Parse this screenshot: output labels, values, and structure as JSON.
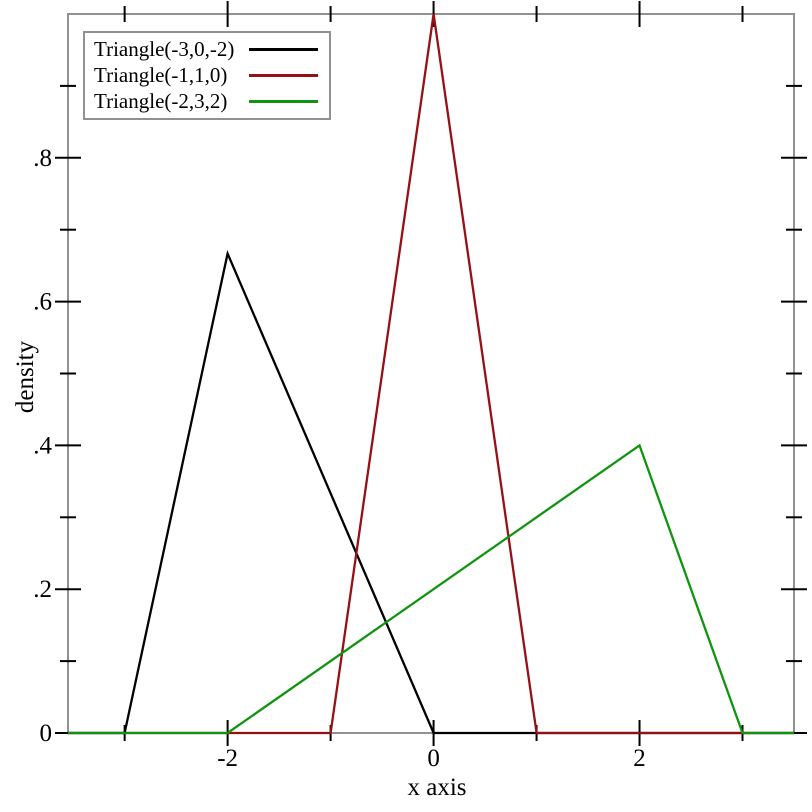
{
  "chart_data": {
    "type": "line",
    "title": "",
    "xlabel": "x axis",
    "ylabel": "density",
    "x_range": [
      -3.55,
      3.5
    ],
    "y_range": [
      0,
      1
    ],
    "grid": "off",
    "frame_color": "#919191",
    "tick_color": "#000000",
    "x_ticks_major": [
      {
        "value": -2,
        "label": "-2"
      },
      {
        "value": 0,
        "label": "0"
      },
      {
        "value": 2,
        "label": "2"
      }
    ],
    "x_ticks_minor": [
      -3,
      -1,
      1,
      3
    ],
    "y_ticks_major": [
      {
        "value": 0,
        "label": "0"
      },
      {
        "value": 0.2,
        "label": ".2"
      },
      {
        "value": 0.4,
        "label": ".4"
      },
      {
        "value": 0.6,
        "label": ".6"
      },
      {
        "value": 0.8,
        "label": ".8"
      }
    ],
    "y_ticks_minor": [
      0.1,
      0.3,
      0.5,
      0.7,
      0.9
    ],
    "series": [
      {
        "name": "Triangle(-3,0,-2)",
        "color": "#000000",
        "description": "triangular pdf, min -3, max 0, mode -2, peak density 0.667",
        "points": [
          [
            -3.55,
            0
          ],
          [
            -3,
            0
          ],
          [
            -2,
            0.6667
          ],
          [
            0,
            0
          ],
          [
            3.5,
            0
          ]
        ]
      },
      {
        "name": "Triangle(-1,1,0)",
        "color": "#941116",
        "description": "triangular pdf, min -1, max 1, mode 0, peak density 1.0",
        "points": [
          [
            -3.55,
            0
          ],
          [
            -1,
            0
          ],
          [
            0,
            1
          ],
          [
            1,
            0
          ],
          [
            3.5,
            0
          ]
        ]
      },
      {
        "name": "Triangle(-2,3,2)",
        "color": "#109410",
        "description": "triangular pdf, min -2, max 3, mode 2, peak density 0.4",
        "points": [
          [
            -3.55,
            0
          ],
          [
            -2,
            0
          ],
          [
            2,
            0.4
          ],
          [
            3,
            0
          ],
          [
            3.5,
            0
          ]
        ]
      }
    ],
    "legend": {
      "position": "top-left",
      "entries": [
        "Triangle(-3,0,-2)",
        "Triangle(-1,1,0)",
        "Triangle(-2,3,2)"
      ]
    }
  }
}
